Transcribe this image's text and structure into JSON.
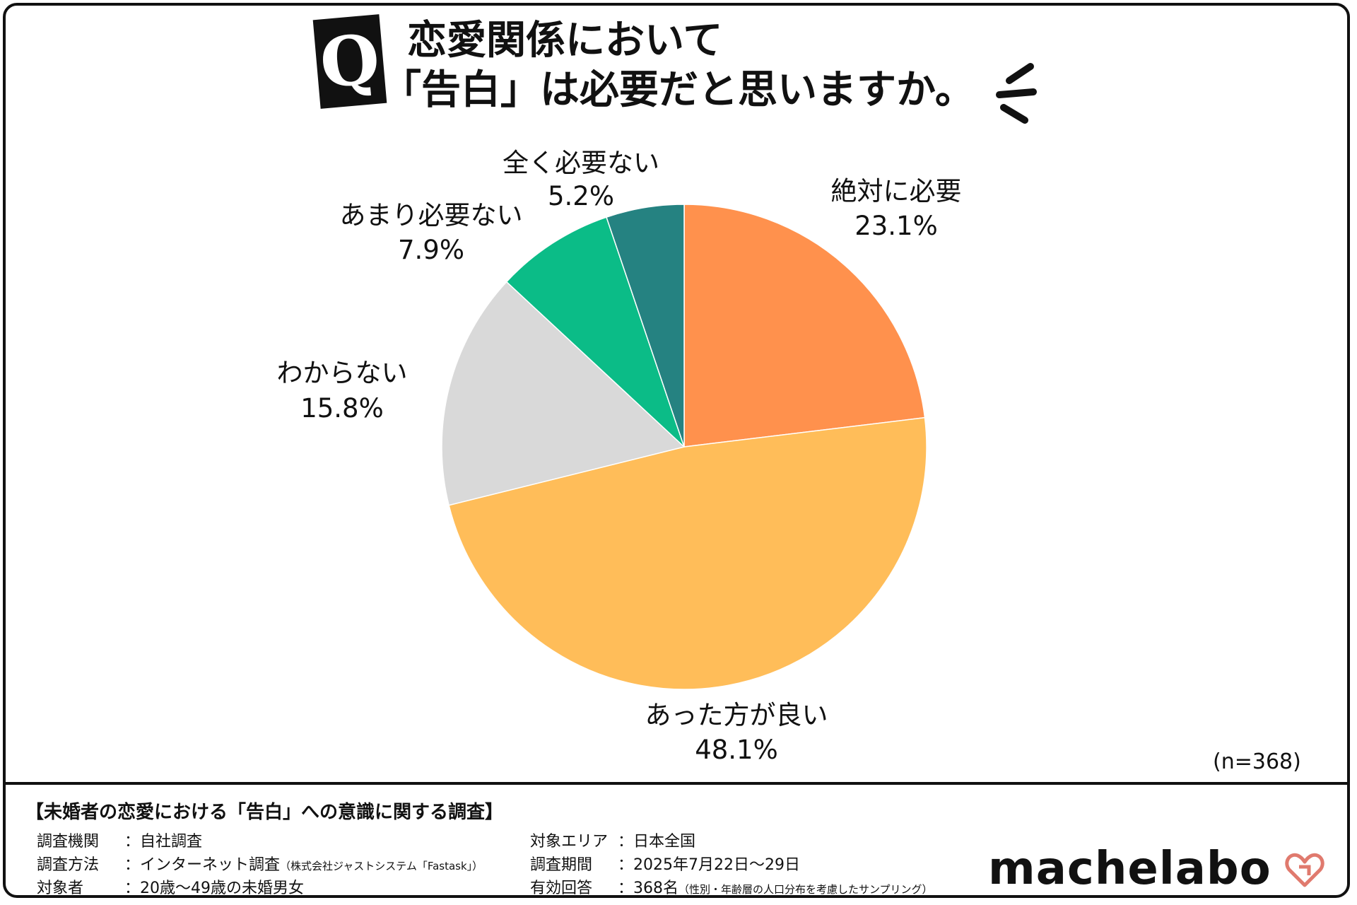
{
  "title": {
    "badge": "Q",
    "line1": "恋愛関係において",
    "line2": "「告白」は必要だと思いますか。"
  },
  "chart_data": {
    "type": "pie",
    "slices": [
      {
        "label": "絶対に必要",
        "value": 23.1,
        "value_text": "23.1%",
        "color": "#FF914D"
      },
      {
        "label": "あった方が良い",
        "value": 48.1,
        "value_text": "48.1%",
        "color": "#FFBD59"
      },
      {
        "label": "わからない",
        "value": 15.8,
        "value_text": "15.8%",
        "color": "#D9D9D9"
      },
      {
        "label": "あまり必要ない",
        "value": 7.9,
        "value_text": "7.9%",
        "color": "#0BBC87"
      },
      {
        "label": "全く必要ない",
        "value": 5.2,
        "value_text": "5.2%",
        "color": "#258281"
      }
    ],
    "start_angle": "12 o'clock",
    "direction": "clockwise",
    "sample_note": "(n=368)"
  },
  "footer": {
    "title": "【未婚者の恋愛における「告白」への意識に関する調査】",
    "left": [
      {
        "key": "調査機関",
        "value": "：自社調査",
        "note": ""
      },
      {
        "key": "調査方法",
        "value": "：インターネット調査",
        "note": "（株式会社ジャストシステム「Fastask」）"
      },
      {
        "key": "対象者",
        "value": "：20歳〜49歳の未婚男女",
        "note": ""
      }
    ],
    "right": [
      {
        "key": "対象エリア",
        "value": "：日本全国",
        "note": ""
      },
      {
        "key": "調査期間",
        "value": "：2025年7月22日〜29日",
        "note": ""
      },
      {
        "key": "有効回答",
        "value": "：368名",
        "note": "（性別・年齢層の人口分布を考慮したサンプリング）"
      }
    ],
    "logo": "machelabo"
  }
}
